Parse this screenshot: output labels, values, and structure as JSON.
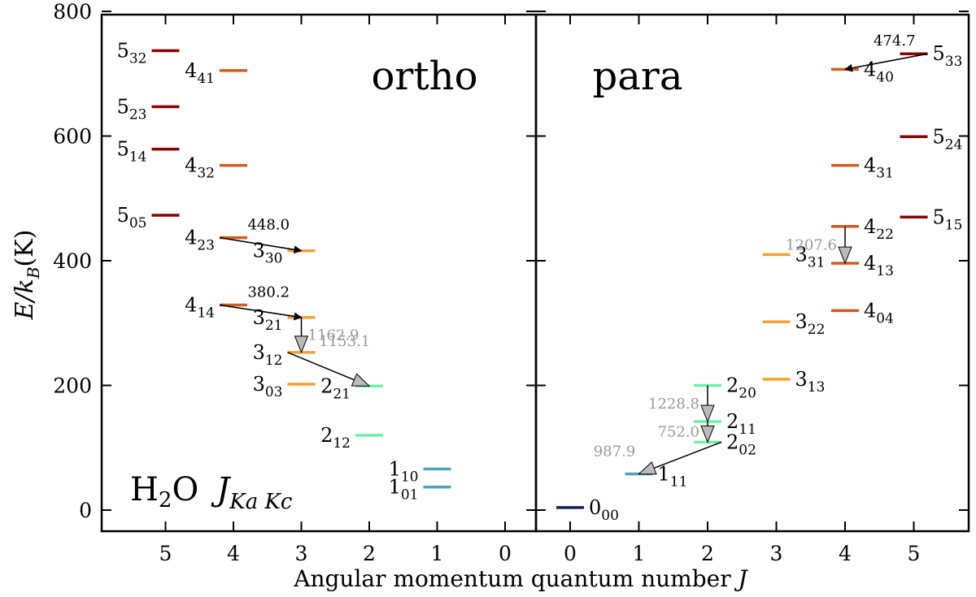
{
  "panels": [
    {
      "id": "ortho",
      "title": "ortho",
      "x_ticks": [
        "5",
        "4",
        "3",
        "2",
        "1",
        "0"
      ]
    },
    {
      "id": "para",
      "title": "para",
      "x_ticks": [
        "0",
        "1",
        "2",
        "3",
        "4",
        "5"
      ]
    }
  ],
  "y_axis": {
    "label": "E/k",
    "label_sub": "B",
    "label_unit": "(K)",
    "ticks": [
      "0",
      "200",
      "400",
      "600",
      "800"
    ],
    "range": [
      0,
      800
    ]
  },
  "x_axis": {
    "label": "Angular momentum quantum number",
    "label_var": "J"
  },
  "species_label": {
    "molecule_pre": "H",
    "molecule_sub": "2",
    "molecule_post": "O",
    "quantum_label": "J",
    "quantum_sub": "Ka Kc"
  },
  "colors": {
    "J0": "#0a1f5c",
    "J1": "#4aa6b8",
    "J2": "#6ef0a8",
    "J3": "#f5a030",
    "J4": "#d45a1e",
    "J5": "#8b0000",
    "arrow_black": "#000000",
    "arrow_gray": "#bbbbbb"
  },
  "levels": [
    {
      "panel": "ortho",
      "J": 5,
      "E": 737,
      "main": "5",
      "sub": "32",
      "label_side": "left"
    },
    {
      "panel": "ortho",
      "J": 5,
      "E": 647,
      "main": "5",
      "sub": "23",
      "label_side": "left"
    },
    {
      "panel": "ortho",
      "J": 5,
      "E": 579,
      "main": "5",
      "sub": "14",
      "label_side": "left"
    },
    {
      "panel": "ortho",
      "J": 5,
      "E": 473,
      "main": "5",
      "sub": "05",
      "label_side": "left"
    },
    {
      "panel": "ortho",
      "J": 4,
      "E": 705,
      "main": "4",
      "sub": "41",
      "label_side": "left"
    },
    {
      "panel": "ortho",
      "J": 4,
      "E": 553,
      "main": "4",
      "sub": "32",
      "label_side": "left"
    },
    {
      "panel": "ortho",
      "J": 4,
      "E": 437,
      "main": "4",
      "sub": "23",
      "label_side": "left"
    },
    {
      "panel": "ortho",
      "J": 4,
      "E": 329,
      "main": "4",
      "sub": "14",
      "label_side": "left"
    },
    {
      "panel": "ortho",
      "J": 3,
      "E": 416,
      "main": "3",
      "sub": "30",
      "label_side": "left"
    },
    {
      "panel": "ortho",
      "J": 3,
      "E": 309,
      "main": "3",
      "sub": "21",
      "label_side": "left"
    },
    {
      "panel": "ortho",
      "J": 3,
      "E": 253,
      "main": "3",
      "sub": "12",
      "label_side": "left"
    },
    {
      "panel": "ortho",
      "J": 3,
      "E": 202,
      "main": "3",
      "sub": "03",
      "label_side": "left"
    },
    {
      "panel": "ortho",
      "J": 2,
      "E": 199,
      "main": "2",
      "sub": "21",
      "label_side": "left"
    },
    {
      "panel": "ortho",
      "J": 2,
      "E": 120,
      "main": "2",
      "sub": "12",
      "label_side": "left"
    },
    {
      "panel": "ortho",
      "J": 1,
      "E": 66,
      "main": "1",
      "sub": "10",
      "label_side": "left"
    },
    {
      "panel": "ortho",
      "J": 1,
      "E": 37,
      "main": "1",
      "sub": "01",
      "label_side": "left"
    },
    {
      "panel": "para",
      "J": 0,
      "E": 4,
      "main": "0",
      "sub": "00",
      "label_side": "right"
    },
    {
      "panel": "para",
      "J": 1,
      "E": 58,
      "main": "1",
      "sub": "11",
      "label_side": "right"
    },
    {
      "panel": "para",
      "J": 2,
      "E": 200,
      "main": "2",
      "sub": "20",
      "label_side": "right"
    },
    {
      "panel": "para",
      "J": 2,
      "E": 142,
      "main": "2",
      "sub": "11",
      "label_side": "right"
    },
    {
      "panel": "para",
      "J": 2,
      "E": 109,
      "main": "2",
      "sub": "02",
      "label_side": "right"
    },
    {
      "panel": "para",
      "J": 3,
      "E": 410,
      "main": "3",
      "sub": "31",
      "label_side": "right"
    },
    {
      "panel": "para",
      "J": 3,
      "E": 302,
      "main": "3",
      "sub": "22",
      "label_side": "right"
    },
    {
      "panel": "para",
      "J": 3,
      "E": 210,
      "main": "3",
      "sub": "13",
      "label_side": "right"
    },
    {
      "panel": "para",
      "J": 4,
      "E": 707,
      "main": "4",
      "sub": "40",
      "label_side": "right"
    },
    {
      "panel": "para",
      "J": 4,
      "E": 553,
      "main": "4",
      "sub": "31",
      "label_side": "right"
    },
    {
      "panel": "para",
      "J": 4,
      "E": 455,
      "main": "4",
      "sub": "22",
      "label_side": "right"
    },
    {
      "panel": "para",
      "J": 4,
      "E": 396,
      "main": "4",
      "sub": "13",
      "label_side": "right"
    },
    {
      "panel": "para",
      "J": 4,
      "E": 320,
      "main": "4",
      "sub": "04",
      "label_side": "right"
    },
    {
      "panel": "para",
      "J": 5,
      "E": 732,
      "main": "5",
      "sub": "33",
      "label_side": "right"
    },
    {
      "panel": "para",
      "J": 5,
      "E": 599,
      "main": "5",
      "sub": "24",
      "label_side": "right"
    },
    {
      "panel": "para",
      "J": 5,
      "E": 470,
      "main": "5",
      "sub": "15",
      "label_side": "right"
    }
  ],
  "transitions": [
    {
      "panel": "ortho",
      "from_J": 4,
      "from_E": 437,
      "to_J": 3,
      "to_E": 416,
      "label": "448.0",
      "style": "black"
    },
    {
      "panel": "ortho",
      "from_J": 4,
      "from_E": 329,
      "to_J": 3,
      "to_E": 309,
      "label": "380.2",
      "style": "black"
    },
    {
      "panel": "ortho",
      "from_J": 3,
      "from_E": 309,
      "to_J": 3,
      "to_E": 253,
      "label": "1162.9",
      "style": "gray"
    },
    {
      "panel": "ortho",
      "from_J": 3,
      "from_E": 253,
      "to_J": 2,
      "to_E": 199,
      "label": "1153.1",
      "style": "gray"
    },
    {
      "panel": "para",
      "from_J": 5,
      "from_E": 732,
      "to_J": 4,
      "to_E": 707,
      "label": "474.7",
      "style": "black"
    },
    {
      "panel": "para",
      "from_J": 4,
      "from_E": 455,
      "to_J": 4,
      "to_E": 396,
      "label": "1207.6",
      "style": "gray"
    },
    {
      "panel": "para",
      "from_J": 2,
      "from_E": 200,
      "to_J": 2,
      "to_E": 142,
      "label": "1228.8",
      "style": "gray"
    },
    {
      "panel": "para",
      "from_J": 2,
      "from_E": 142,
      "to_J": 2,
      "to_E": 109,
      "label": "752.0",
      "style": "gray"
    },
    {
      "panel": "para",
      "from_J": 2,
      "from_E": 109,
      "to_J": 1,
      "to_E": 58,
      "label": "987.9",
      "style": "gray"
    }
  ]
}
